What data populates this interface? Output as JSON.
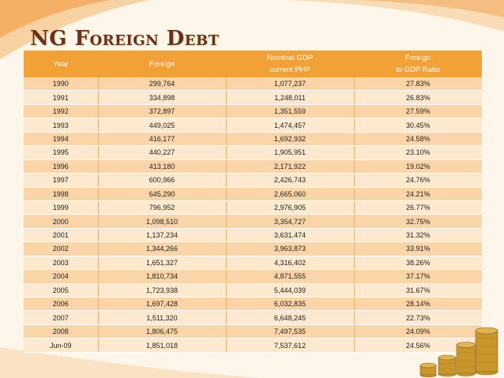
{
  "title": "NG Foreign Debt",
  "colors": {
    "header": "#f2a136",
    "row_odd": "#fbd5a8",
    "row_even": "#fde9cf",
    "title": "#6b3018"
  },
  "headers": {
    "year": "Year",
    "foreign": "Foreign",
    "gdp_line1": "Nominal GDP",
    "gdp_line2": "current PHP",
    "ratio_line1": "Foreign",
    "ratio_line2": "to GDP Ratio"
  },
  "rows": [
    [
      "1990",
      "299,764",
      "1,077,237",
      "27.83%"
    ],
    [
      "1991",
      "334,898",
      "1,248,011",
      "26.83%"
    ],
    [
      "1992",
      "372,897",
      "1,351,559",
      "27.59%"
    ],
    [
      "1993",
      "449,025",
      "1,474,457",
      "30.45%"
    ],
    [
      "1994",
      "416,177",
      "1,692,932",
      "24.58%"
    ],
    [
      "1995",
      "440,227",
      "1,905,951",
      "23.10%"
    ],
    [
      "1996",
      "413,180",
      "2,171,922",
      "19.02%"
    ],
    [
      "1997",
      "600,966",
      "2,426,743",
      "24.76%"
    ],
    [
      "1998",
      "645,290",
      "2,665,060",
      "24.21%"
    ],
    [
      "1999",
      "796,952",
      "2,976,905",
      "26.77%"
    ],
    [
      "2000",
      "1,098,510",
      "3,354,727",
      "32.75%"
    ],
    [
      "2001",
      "1,137,234",
      "3,631,474",
      "31.32%"
    ],
    [
      "2002",
      "1,344,266",
      "3,963,873",
      "33.91%"
    ],
    [
      "2003",
      "1,651,327",
      "4,316,402",
      "38.26%"
    ],
    [
      "2004",
      "1,810,734",
      "4,871,555",
      "37.17%"
    ],
    [
      "2005",
      "1,723,938",
      "5,444,039",
      "31.67%"
    ],
    [
      "2006",
      "1,697,428",
      "6,032,835",
      "28.14%"
    ],
    [
      "2007",
      "1,511,320",
      "6,648,245",
      "22.73%"
    ],
    [
      "2008",
      "1,806,475",
      "7,497,535",
      "24.09%"
    ],
    [
      "Jun-09",
      "1,851,018",
      "7,537,612",
      "24.56%"
    ]
  ]
}
